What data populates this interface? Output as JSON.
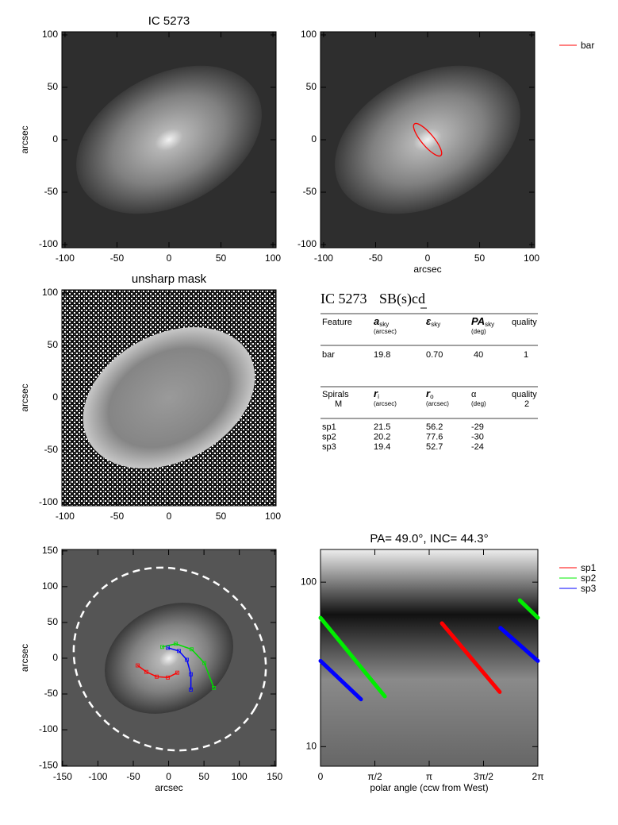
{
  "chart_data": [
    {
      "type": "image",
      "title": "IC 5273",
      "ylabel": "arcsec",
      "xlim": [
        -103,
        103
      ],
      "ylim": [
        -103,
        103
      ],
      "xticks": [
        -100,
        -50,
        0,
        50,
        100
      ],
      "yticks": [
        -100,
        -50,
        0,
        50,
        100
      ]
    },
    {
      "type": "ellipse",
      "xlabel": "arcsec",
      "xlim": [
        -103,
        103
      ],
      "ylim": [
        -103,
        103
      ],
      "xticks": [
        -100,
        -50,
        0,
        50,
        100
      ],
      "yticks": [
        -100,
        -50,
        0,
        50,
        100
      ],
      "series": [
        {
          "name": "bar",
          "color": "#ff0000"
        }
      ]
    },
    {
      "type": "image",
      "title": "unsharp mask",
      "ylabel": "arcsec",
      "xlim": [
        -103,
        103
      ],
      "ylim": [
        -103,
        103
      ],
      "xticks": [
        -100,
        -50,
        0,
        50,
        100
      ],
      "yticks": [
        -100,
        -50,
        0,
        50,
        100
      ]
    },
    {
      "type": "line",
      "xlabel": "arcsec",
      "ylabel": "arcsec",
      "xlim": [
        -151,
        152
      ],
      "ylim": [
        -151,
        152
      ],
      "xticks": [
        -150,
        -100,
        -50,
        0,
        50,
        100,
        150
      ],
      "yticks": [
        -150,
        -100,
        -50,
        0,
        50,
        100,
        150
      ],
      "series": [
        {
          "color": "#ff0000",
          "x": [
            -43.8,
            -31.5,
            -16.9,
            -1.1,
            12.4
          ],
          "values": [
            -10.1,
            -19.1,
            -25.8,
            -27,
            -20.2
          ]
        },
        {
          "color": "#00dd00",
          "x": [
            -9,
            10.1,
            32.6,
            50.6,
            64
          ],
          "values": [
            15.7,
            20.2,
            12.4,
            -6.7,
            -41.6
          ]
        },
        {
          "color": "#0000ff",
          "x": [
            -1.1,
            14.6,
            25.8,
            31.5,
            31.5
          ],
          "values": [
            14.6,
            10.1,
            -2.2,
            -22.5,
            -43.8
          ]
        }
      ]
    },
    {
      "type": "line",
      "title": "PA= 49.0°, INC= 44.3°",
      "xlabel": "polar angle (ccw from West)",
      "xlim": [
        0,
        6.2832
      ],
      "ylim": [
        7.6,
        158
      ],
      "ylog": true,
      "xticks": [
        0,
        {
          "value": 1.5708,
          "label": "π/2"
        },
        {
          "value": 3.1416,
          "label": "π"
        },
        {
          "value": 4.7124,
          "label": "3π/2"
        },
        {
          "value": 6.2832,
          "label": "2π"
        }
      ],
      "yticks": [
        10,
        100
      ],
      "series": [
        {
          "name": "sp1",
          "color": "#ff0000",
          "x": [
            3.51,
            5.18
          ],
          "values": [
            56.2,
            21.5
          ]
        },
        {
          "name": "sp2",
          "color": "#00ee00",
          "x": [
            5.76,
            6.2832,
            null,
            0,
            1.86
          ],
          "values": [
            77.6,
            60.7,
            null,
            60.7,
            20.2
          ]
        },
        {
          "name": "sp3",
          "color": "#0000ff",
          "x": [
            5.2,
            6.2832,
            null,
            0,
            1.17
          ],
          "values": [
            52.7,
            33.2,
            null,
            33.2,
            19.4
          ]
        }
      ]
    }
  ],
  "table": {
    "name": "IC 5273",
    "morphology": "SB(s)cd",
    "bar_header": [
      {
        "text": "Feature"
      },
      {
        "text": "a",
        "sub": "sky",
        "unit": "(arcsec)"
      },
      {
        "text": "ε",
        "sub": "sky"
      },
      {
        "text": "PA",
        "sub": "sky",
        "unit": "(deg)"
      },
      {
        "text": "quality"
      }
    ],
    "bar_rows": [
      [
        "bar",
        "19.8",
        "0.70",
        "40",
        "1"
      ]
    ],
    "spiral_header": [
      {
        "text": "Spirals",
        "unit": "M"
      },
      {
        "text": "r",
        "sub": "i",
        "unit": "(arcsec)"
      },
      {
        "text": "r",
        "sub": "o",
        "unit": "(arcsec)"
      },
      {
        "text": "α",
        "unit": "(deg)"
      },
      {
        "text": "quality",
        "unit": "2"
      }
    ],
    "spiral_rows": [
      [
        "sp1",
        "21.5",
        "56.2",
        "-29"
      ],
      [
        "sp2",
        "20.2",
        "77.6",
        "-30"
      ],
      [
        "sp3",
        "19.4",
        "52.7",
        "-24"
      ]
    ]
  }
}
